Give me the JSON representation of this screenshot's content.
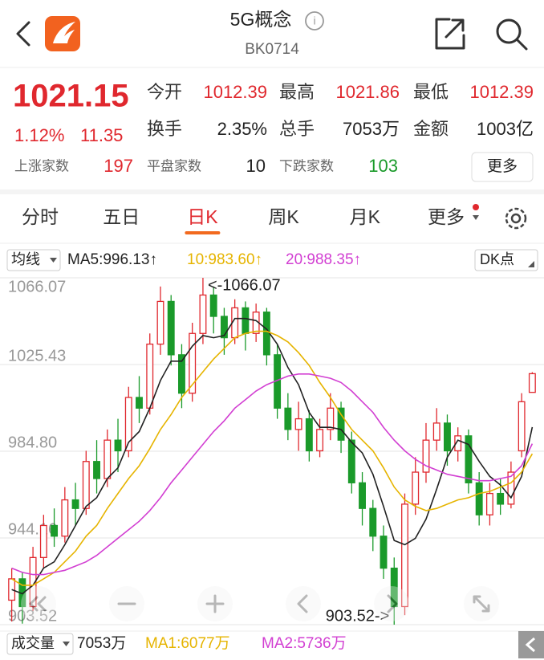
{
  "header": {
    "title": "5G概念",
    "code": "BK0714"
  },
  "quote": {
    "price": "1021.15",
    "change_pct": "1.12%",
    "change": "11.35",
    "fields": [
      {
        "label": "今开",
        "value": "1012.39",
        "color": "#e0282e"
      },
      {
        "label": "最高",
        "value": "1021.86",
        "color": "#e0282e"
      },
      {
        "label": "最低",
        "value": "1012.39",
        "color": "#e0282e"
      },
      {
        "label": "换手",
        "value": "2.35%",
        "color": "#222222"
      },
      {
        "label": "总手",
        "value": "7053万",
        "color": "#222222"
      },
      {
        "label": "金额",
        "value": "1003亿",
        "color": "#222222"
      }
    ],
    "breadth": [
      {
        "label": "上涨家数",
        "value": "197",
        "color": "#e0282e"
      },
      {
        "label": "平盘家数",
        "value": "10",
        "color": "#222222"
      },
      {
        "label": "下跌家数",
        "value": "103",
        "color": "#1a9a2a"
      }
    ],
    "more": "更多"
  },
  "tabs": [
    "分时",
    "五日",
    "日K",
    "周K",
    "月K",
    "更多"
  ],
  "active_tab": 2,
  "ma_legend": {
    "selector": "均线",
    "dk": "DK点",
    "items": [
      {
        "text": "MA5:996.13↑",
        "color": "#222222"
      },
      {
        "text": "10:983.60↑",
        "color": "#e6b400"
      },
      {
        "text": "20:988.35↑",
        "color": "#d23fd2"
      }
    ]
  },
  "chart_data": {
    "type": "candlestick",
    "ylim": [
      903.52,
      1066.07
    ],
    "yticks": [
      1066.07,
      1025.43,
      {
        "value": 984.8,
        "label": "984.80"
      },
      944.16,
      903.52
    ],
    "grid": true,
    "up_color": "#e0282e",
    "down_color": "#1a9a2a",
    "open": [
      915,
      925,
      912,
      935,
      950,
      945,
      962,
      958,
      980,
      972,
      990,
      985,
      1010,
      1005,
      1035,
      1055,
      1030,
      1012,
      1040,
      1058,
      1048,
      1038,
      1052,
      1040,
      1050,
      1030,
      1005,
      995,
      1000,
      985,
      995,
      1005,
      990,
      970,
      958,
      945,
      930,
      912,
      960,
      975,
      990,
      998,
      985,
      992,
      970,
      955,
      965,
      960,
      985,
      1012.39
    ],
    "close": [
      925,
      912,
      935,
      950,
      945,
      962,
      958,
      980,
      972,
      990,
      985,
      1010,
      1005,
      1035,
      1055,
      1030,
      1012,
      1040,
      1058,
      1048,
      1038,
      1052,
      1040,
      1050,
      1030,
      1005,
      995,
      1000,
      985,
      995,
      1005,
      990,
      970,
      958,
      945,
      930,
      912,
      960,
      975,
      990,
      998,
      985,
      992,
      970,
      955,
      965,
      960,
      975,
      1008,
      1021.15
    ],
    "high": [
      930,
      928,
      940,
      955,
      958,
      968,
      970,
      985,
      990,
      995,
      1000,
      1015,
      1020,
      1040,
      1062,
      1058,
      1035,
      1045,
      1066.07,
      1062,
      1052,
      1056,
      1055,
      1054,
      1052,
      1035,
      1012,
      1008,
      1004,
      1000,
      1012,
      1008,
      994,
      975,
      962,
      950,
      935,
      965,
      982,
      998,
      1005,
      1002,
      996,
      995,
      975,
      970,
      972,
      980,
      1012,
      1021.86
    ],
    "low": [
      905,
      904,
      910,
      930,
      940,
      942,
      950,
      955,
      965,
      968,
      975,
      982,
      998,
      1002,
      1030,
      1025,
      1005,
      1008,
      1035,
      1040,
      1030,
      1035,
      1032,
      1036,
      1025,
      1000,
      990,
      985,
      980,
      982,
      990,
      984,
      965,
      950,
      938,
      925,
      903.52,
      908,
      955,
      970,
      985,
      978,
      980,
      965,
      950,
      950,
      955,
      958,
      982,
      1012.39
    ],
    "series": [
      {
        "name": "MA5",
        "color": "#222222",
        "values": [
          920,
          918,
          922,
          930,
          933,
          941,
          950,
          959,
          963,
          972,
          977,
          989,
          994,
          1005,
          1018,
          1027,
          1027,
          1034,
          1039,
          1038,
          1039,
          1047,
          1047,
          1046,
          1042,
          1035,
          1024,
          1016,
          1003,
          996,
          996,
          995,
          989,
          984,
          974,
          959,
          943,
          941,
          944,
          953,
          967,
          982,
          990,
          988,
          980,
          973,
          969,
          963,
          973,
          996.13
        ]
      },
      {
        "name": "MA10",
        "color": "#e6b400",
        "values": [
          925,
          922,
          922,
          925,
          928,
          933,
          938,
          945,
          950,
          958,
          965,
          972,
          978,
          986,
          995,
          1002,
          1010,
          1016,
          1022,
          1028,
          1033,
          1038,
          1040,
          1041,
          1041,
          1039,
          1036,
          1031,
          1025,
          1017,
          1010,
          1002,
          995,
          990,
          985,
          977,
          968,
          962,
          959,
          957,
          958,
          960,
          962,
          963,
          965,
          966,
          968,
          970,
          975,
          983.6
        ]
      },
      {
        "name": "MA20",
        "color": "#d23fd2",
        "values": [
          930,
          928,
          927,
          927,
          928,
          929,
          931,
          933,
          936,
          940,
          944,
          948,
          952,
          957,
          963,
          970,
          976,
          982,
          988,
          994,
          999,
          1005,
          1009,
          1013,
          1016,
          1018,
          1020,
          1021,
          1021,
          1020,
          1019,
          1017,
          1013,
          1008,
          1003,
          996,
          990,
          985,
          981,
          978,
          976,
          974,
          973,
          972,
          971,
          971,
          972,
          973,
          978,
          988.35
        ]
      }
    ],
    "annotations": [
      {
        "label": "<-1066.07",
        "value": 1066.07
      },
      {
        "label": "903.52->",
        "value": 903.52
      }
    ]
  },
  "volume_bar": {
    "selector": "成交量",
    "items": [
      {
        "text": "7053万",
        "color": "#222222"
      },
      {
        "text": "MA1:6077万",
        "color": "#e6b400"
      },
      {
        "text": "MA2:5736万",
        "color": "#d23fd2"
      }
    ]
  }
}
